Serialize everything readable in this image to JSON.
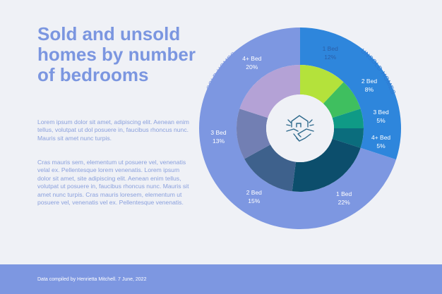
{
  "title": "Sold and unsold homes by number of bedrooms",
  "paragraphs": [
    "Lorem ipsum dolor sit amet, adipiscing elit. Aenean enim tellus, volutpat ut dol posuere in, faucibus rhoncus nunc. Mauris sit amet nunc turpis.",
    "Cras mauris sem, elementum ut posuere vel, venenatis velal ex. Pellentesque lorem venenatis. Lorem ipsum dolor sit amet, site adipiscing elit. Aenean enim tellus, volutpat ut posuere in, faucibus rhoncus nunc. Mauris sit amet nunc turpis. Cras mauris loresem, elementum ut posuere vel, venenatis vel ex. Pellentesque venenatis."
  ],
  "footer": "Data compiled by Henrietta Mitchell. 7 June, 2022",
  "icon": "house-handshake-icon",
  "chart_data": {
    "type": "pie",
    "subtype": "nested-donut",
    "outer_ring": [
      {
        "label": "UNSOLD HOMES",
        "value": 30,
        "color": "#2e86dc"
      },
      {
        "label": "SOLD HOMES",
        "value": 70,
        "color": "#7d97e1"
      }
    ],
    "inner_ring": [
      {
        "name": "1 Bed",
        "value": 12,
        "label": "12%",
        "color": "#b4e23b",
        "text_color": "#2b5fa8",
        "group": "UNSOLD HOMES"
      },
      {
        "name": "2 Bed",
        "value": 8,
        "label": "8%",
        "color": "#3fbf5f",
        "text_color": "#ffffff",
        "group": "UNSOLD HOMES"
      },
      {
        "name": "3 Bed",
        "value": 5,
        "label": "5%",
        "color": "#0f9a86",
        "text_color": "#ffffff",
        "group": "UNSOLD HOMES"
      },
      {
        "name": "4+ Bed",
        "value": 5,
        "label": "5%",
        "color": "#0b6d7d",
        "text_color": "#ffffff",
        "group": "UNSOLD HOMES"
      },
      {
        "name": "1 Bed",
        "value": 22,
        "label": "22%",
        "color": "#0c4e6c",
        "text_color": "#ffffff",
        "group": "SOLD HOMES"
      },
      {
        "name": "2 Bed",
        "value": 15,
        "label": "15%",
        "color": "#3e618c",
        "text_color": "#ffffff",
        "group": "SOLD HOMES"
      },
      {
        "name": "3 Bed",
        "value": 13,
        "label": "13%",
        "color": "#727fb3",
        "text_color": "#ffffff",
        "group": "SOLD HOMES"
      },
      {
        "name": "4+ Bed",
        "value": 20,
        "label": "20%",
        "color": "#b4a2d6",
        "text_color": "#ffffff",
        "group": "SOLD HOMES"
      }
    ]
  }
}
